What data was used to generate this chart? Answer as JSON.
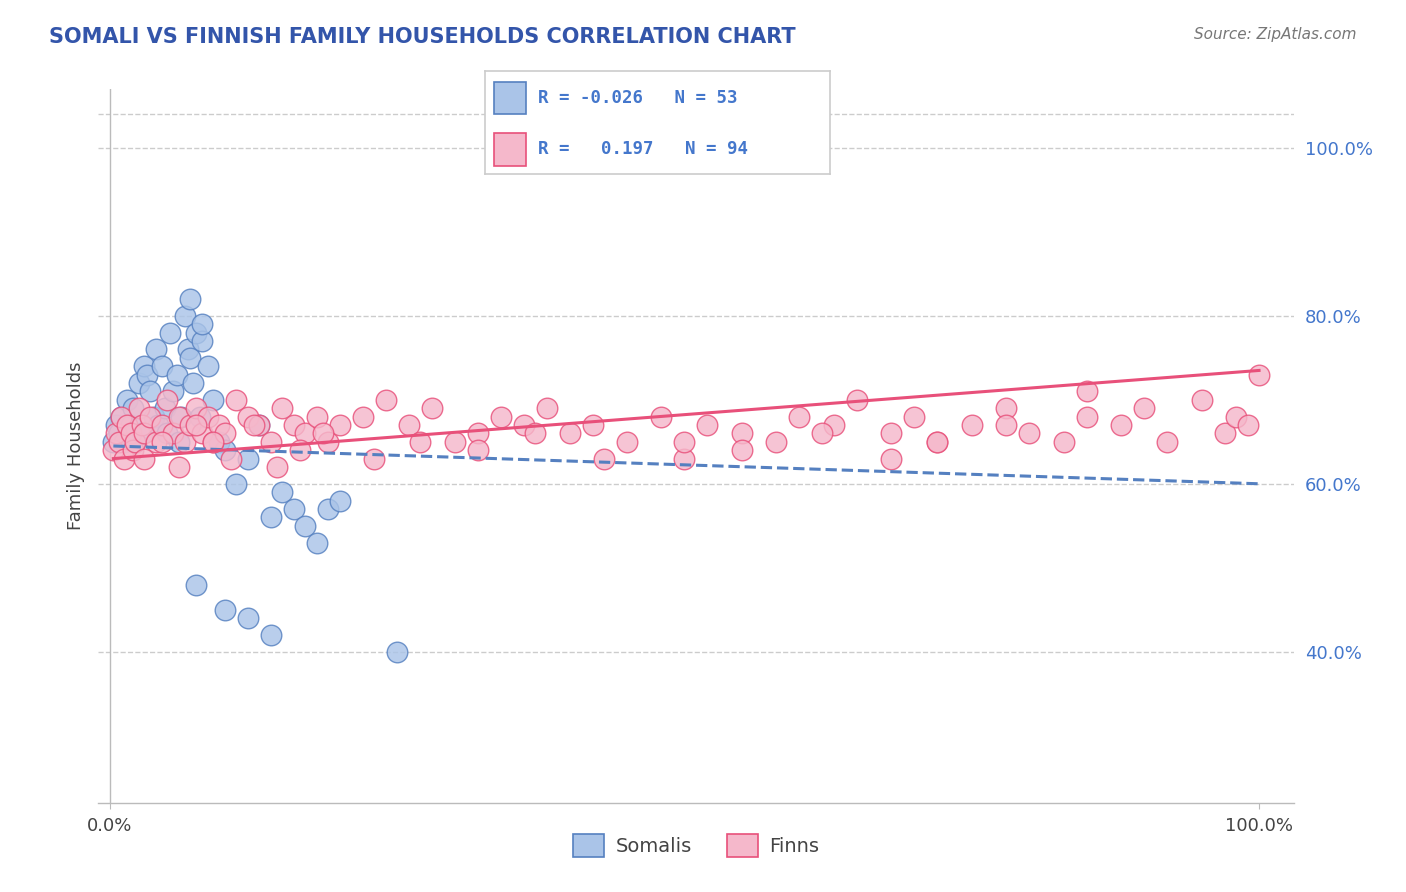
{
  "title": "SOMALI VS FINNISH FAMILY HOUSEHOLDS CORRELATION CHART",
  "source": "Source: ZipAtlas.com",
  "ylabel": "Family Households",
  "color_somali": "#aac4e8",
  "color_finn": "#f5b8cb",
  "line_color_somali": "#5580c0",
  "line_color_finn": "#e8507a",
  "title_color": "#3355aa",
  "source_color": "#777777",
  "grid_color": "#cccccc",
  "axis_color": "#bbbbbb",
  "ytick_color": "#4477cc",
  "somali_x": [
    0.3,
    0.5,
    0.8,
    1.0,
    1.2,
    1.5,
    1.8,
    2.0,
    2.2,
    2.5,
    2.8,
    3.0,
    3.2,
    3.5,
    3.8,
    4.0,
    4.2,
    4.5,
    4.8,
    5.0,
    5.2,
    5.5,
    5.8,
    6.0,
    6.2,
    6.5,
    6.8,
    7.0,
    7.2,
    7.5,
    7.8,
    8.0,
    8.5,
    9.0,
    9.5,
    10.0,
    11.0,
    12.0,
    13.0,
    14.0,
    15.0,
    16.0,
    17.0,
    18.0,
    19.0,
    20.0,
    7.0,
    8.0,
    10.0,
    12.0,
    14.0,
    7.5,
    25.0
  ],
  "somali_y": [
    65,
    67,
    66,
    68,
    65,
    70,
    67,
    69,
    65,
    72,
    66,
    74,
    73,
    71,
    68,
    76,
    67,
    74,
    69,
    66,
    78,
    71,
    73,
    65,
    68,
    80,
    76,
    75,
    72,
    78,
    68,
    77,
    74,
    70,
    65,
    64,
    60,
    63,
    67,
    56,
    59,
    57,
    55,
    53,
    57,
    58,
    82,
    79,
    45,
    44,
    42,
    48,
    40
  ],
  "finn_x": [
    0.3,
    0.5,
    0.8,
    1.0,
    1.2,
    1.5,
    1.8,
    2.0,
    2.2,
    2.5,
    2.8,
    3.0,
    3.5,
    4.0,
    4.5,
    5.0,
    5.5,
    6.0,
    6.5,
    7.0,
    7.5,
    8.0,
    8.5,
    9.0,
    9.5,
    10.0,
    11.0,
    12.0,
    13.0,
    14.0,
    15.0,
    16.0,
    17.0,
    18.0,
    19.0,
    20.0,
    22.0,
    24.0,
    26.0,
    28.0,
    30.0,
    32.0,
    34.0,
    36.0,
    38.0,
    40.0,
    42.0,
    45.0,
    48.0,
    50.0,
    52.0,
    55.0,
    58.0,
    60.0,
    63.0,
    65.0,
    68.0,
    70.0,
    72.0,
    75.0,
    78.0,
    80.0,
    83.0,
    85.0,
    88.0,
    90.0,
    92.0,
    95.0,
    97.0,
    98.0,
    99.0,
    100.0,
    3.0,
    4.5,
    6.0,
    7.5,
    9.0,
    10.5,
    12.5,
    14.5,
    16.5,
    18.5,
    23.0,
    27.0,
    32.0,
    37.0,
    43.0,
    50.0,
    55.0,
    62.0,
    68.0,
    72.0,
    78.0,
    85.0
  ],
  "finn_y": [
    64,
    66,
    65,
    68,
    63,
    67,
    66,
    64,
    65,
    69,
    67,
    66,
    68,
    65,
    67,
    70,
    66,
    68,
    65,
    67,
    69,
    66,
    68,
    65,
    67,
    66,
    70,
    68,
    67,
    65,
    69,
    67,
    66,
    68,
    65,
    67,
    68,
    70,
    67,
    69,
    65,
    66,
    68,
    67,
    69,
    66,
    67,
    65,
    68,
    63,
    67,
    66,
    65,
    68,
    67,
    70,
    66,
    68,
    65,
    67,
    69,
    66,
    65,
    68,
    67,
    69,
    65,
    70,
    66,
    68,
    67,
    73,
    63,
    65,
    62,
    67,
    65,
    63,
    67,
    62,
    64,
    66,
    63,
    65,
    64,
    66,
    63,
    65,
    64,
    66,
    63,
    65,
    67,
    71
  ],
  "som_trend_start_x": 0.3,
  "som_trend_start_y": 64.5,
  "som_trend_end_x": 100.0,
  "som_trend_end_y": 60.0,
  "finn_trend_start_x": 0.3,
  "finn_trend_start_y": 63.0,
  "finn_trend_end_x": 100.0,
  "finn_trend_end_y": 73.5,
  "xlim_min": -1,
  "xlim_max": 103,
  "ylim_min": 22,
  "ylim_max": 107
}
